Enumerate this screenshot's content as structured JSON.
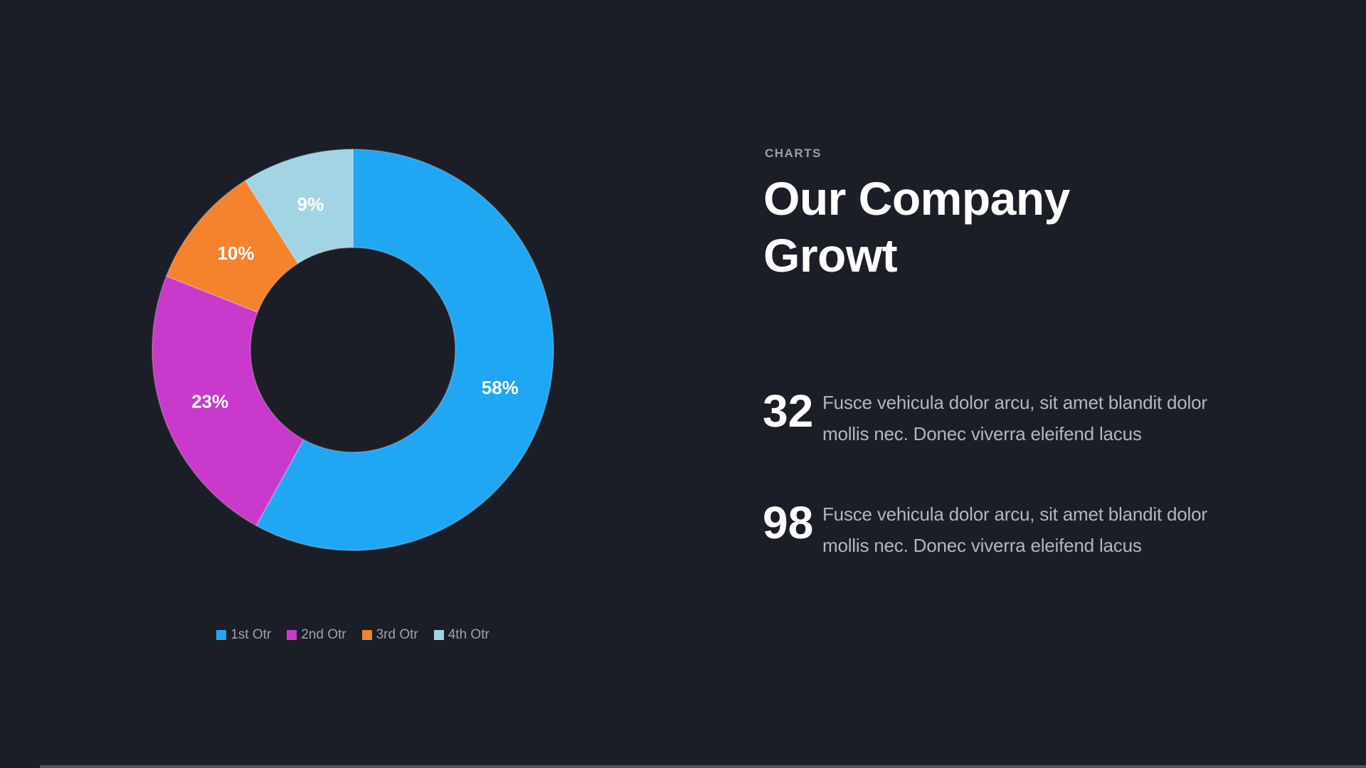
{
  "page": {
    "background_color": "#1C1E27",
    "bottom_strip_color": "#4F525D"
  },
  "chart_data": {
    "type": "pie",
    "subtype": "doughnut",
    "title": "",
    "categories": [
      "1st Otr",
      "2nd Otr",
      "3rd Otr",
      "4th Otr"
    ],
    "values": [
      58,
      23,
      10,
      9
    ],
    "data_labels": [
      "58%",
      "23%",
      "10%",
      "9%"
    ],
    "colors": [
      "#1FA7F3",
      "#C939CB",
      "#F5822D",
      "#A2D5E4"
    ],
    "start_angle_deg": 0,
    "direction": "clockwise",
    "hole_ratio": 0.51,
    "legend_position": "bottom",
    "data_label_color": "#FFFFFF"
  },
  "content": {
    "kicker": "CHARTS",
    "title": "Our Company\nGrowt",
    "stats": [
      {
        "value": "32",
        "text": "Fusce vehicula dolor arcu, sit amet blandit dolor\nmollis nec. Donec viverra eleifend lacus"
      },
      {
        "value": "98",
        "text": "Fusce vehicula dolor arcu, sit amet blandit dolor\nmollis nec. Donec viverra eleifend lacus"
      }
    ]
  }
}
